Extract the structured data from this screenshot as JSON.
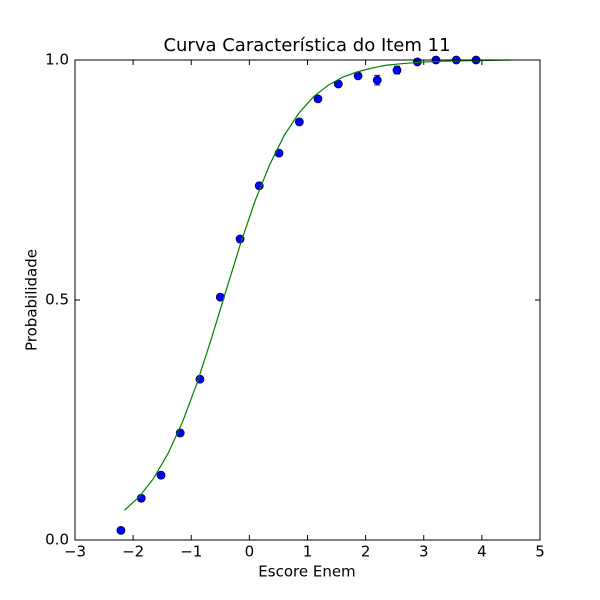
{
  "chart_data": {
    "type": "scatter",
    "title": "Curva Característica do Item 11",
    "x_label": "Escore Enem",
    "y_label": "Probabilidade",
    "xlim": [
      -3,
      5
    ],
    "ylim": [
      0,
      1
    ],
    "xticks": [
      {
        "value": -3,
        "label": "−3"
      },
      {
        "value": -2,
        "label": "−2"
      },
      {
        "value": -1,
        "label": "−1"
      },
      0,
      1,
      2,
      3,
      4,
      5
    ],
    "yticks": [
      {
        "value": 0,
        "label": "0.0"
      },
      0.5,
      {
        "value": 1,
        "label": "1.0"
      }
    ],
    "series": [
      {
        "type": "errorbar",
        "color": "#0000ff",
        "x": [
          -2.21,
          -1.86,
          -1.52,
          -1.19,
          -0.85,
          -0.5,
          -0.16,
          0.17,
          0.51,
          0.86,
          1.18,
          1.53,
          1.87,
          2.2,
          2.54,
          2.89,
          3.21,
          3.56,
          3.9
        ],
        "values": [
          0.02,
          0.087,
          0.135,
          0.223,
          0.335,
          0.506,
          0.627,
          0.738,
          0.806,
          0.871,
          0.919,
          0.95,
          0.967,
          0.958,
          0.979,
          0.996,
          1.0,
          1.0,
          1.0
        ],
        "errors": [
          0.005,
          0.006,
          0.006,
          0.006,
          0.006,
          0.006,
          0.006,
          0.006,
          0.005,
          0.005,
          0.005,
          0.005,
          0.005,
          0.01,
          0.008,
          0.004,
          0.003,
          0.003,
          0.003
        ]
      },
      {
        "type": "line",
        "color": "#008000",
        "x": [
          -2.15,
          -1.9,
          -1.65,
          -1.4,
          -1.15,
          -0.9,
          -0.65,
          -0.4,
          -0.15,
          0.1,
          0.35,
          0.6,
          0.85,
          1.1,
          1.35,
          1.6,
          1.85,
          2.1,
          2.35,
          2.6,
          3.0,
          3.5,
          4.0,
          4.5
        ],
        "values": [
          0.0618,
          0.0894,
          0.128,
          0.18,
          0.246,
          0.327,
          0.421,
          0.52,
          0.618,
          0.707,
          0.782,
          0.843,
          0.889,
          0.923,
          0.947,
          0.964,
          0.975,
          0.983,
          0.989,
          0.992,
          0.996,
          0.998,
          0.999,
          1.0
        ]
      }
    ]
  }
}
